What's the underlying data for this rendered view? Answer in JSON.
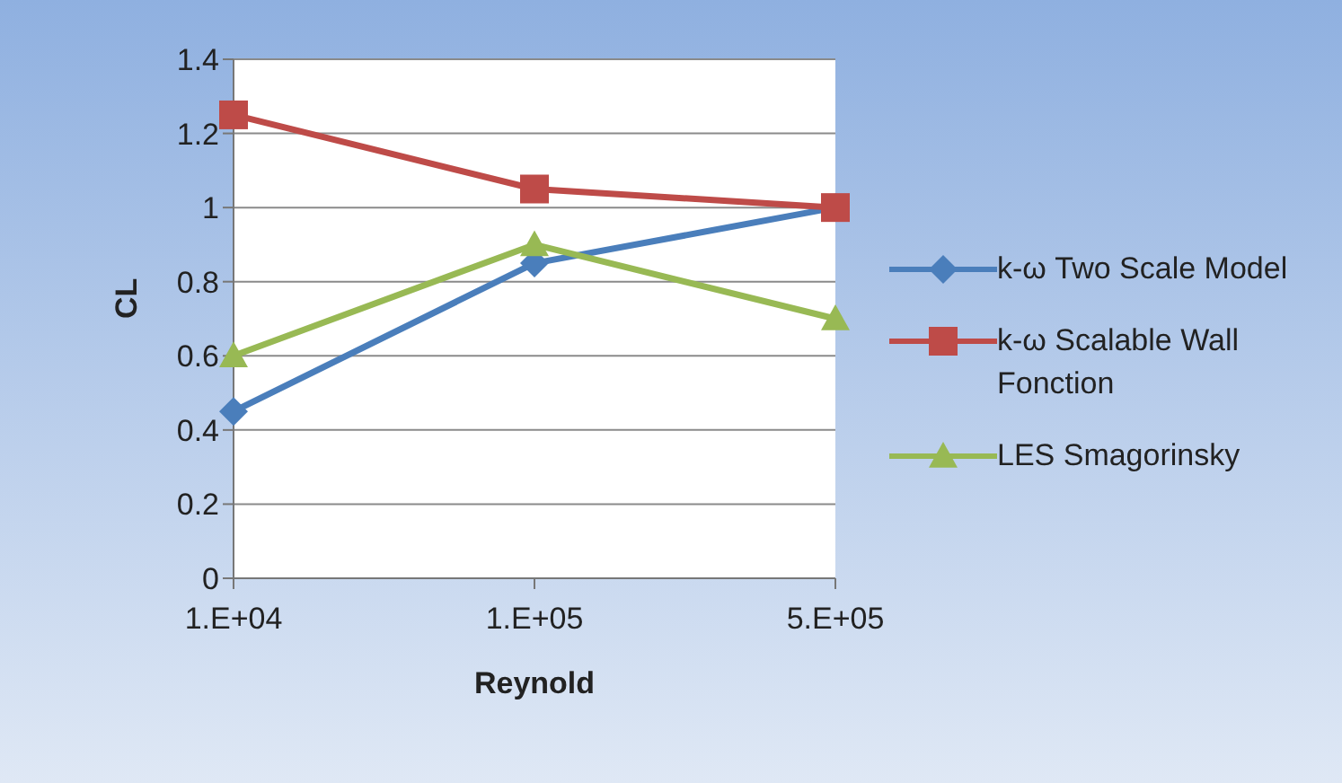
{
  "chart_data": {
    "type": "line",
    "xlabel": "Reynold",
    "ylabel": "CL",
    "categories": [
      "1.E+04",
      "1.E+05",
      "5.E+05"
    ],
    "series": [
      {
        "name": "k-ω Two Scale Model",
        "color": "#4a7ebb",
        "marker": "diamond",
        "values": [
          0.45,
          0.85,
          1.0
        ]
      },
      {
        "name": "k-ω Scalable Wall Fonction",
        "color": "#be4b48",
        "marker": "square",
        "values": [
          1.25,
          1.05,
          1.0
        ]
      },
      {
        "name": "LES Smagorinsky",
        "color": "#98b954",
        "marker": "triangle",
        "values": [
          0.6,
          0.9,
          0.7
        ]
      }
    ],
    "ylim": [
      0,
      1.4
    ],
    "yticks": [
      0,
      0.2,
      0.4,
      0.6,
      0.8,
      1,
      1.2,
      1.4
    ],
    "grid": "y",
    "legend": "right"
  }
}
